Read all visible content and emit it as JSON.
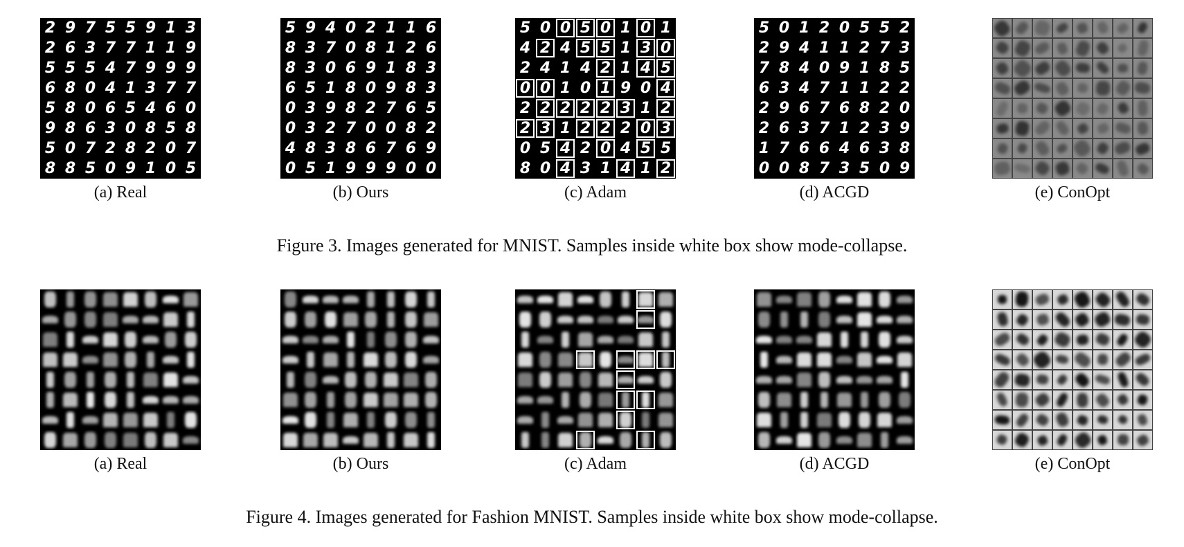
{
  "figure3": {
    "caption": "Figure 3. Images generated for MNIST. Samples inside white box show mode-collapse.",
    "panels": [
      {
        "label": "(a) Real",
        "rows": [
          "29755913",
          "26377119",
          "55547999",
          "68041377",
          "58065460",
          "98630858",
          "50728207",
          "88509105"
        ],
        "boxed": []
      },
      {
        "label": "(b) Ours",
        "rows": [
          "59402116",
          "83708126",
          "83069183",
          "65180983",
          "03982765",
          "03270082",
          "48386769",
          "05199900"
        ],
        "boxed": []
      },
      {
        "label": "(c) Adam",
        "rows": [
          "50050101",
          "42455130",
          "24142145",
          "00101904",
          "22222312",
          "23122203",
          "05420455",
          "80431412"
        ],
        "boxed": [
          [
            0,
            2
          ],
          [
            0,
            3
          ],
          [
            0,
            4
          ],
          [
            0,
            6
          ],
          [
            1,
            1
          ],
          [
            1,
            3
          ],
          [
            1,
            4
          ],
          [
            1,
            6
          ],
          [
            1,
            7
          ],
          [
            2,
            4
          ],
          [
            2,
            6
          ],
          [
            2,
            7
          ],
          [
            3,
            0
          ],
          [
            3,
            1
          ],
          [
            3,
            4
          ],
          [
            3,
            7
          ],
          [
            4,
            1
          ],
          [
            4,
            2
          ],
          [
            4,
            3
          ],
          [
            4,
            4
          ],
          [
            4,
            5
          ],
          [
            4,
            7
          ],
          [
            5,
            0
          ],
          [
            5,
            1
          ],
          [
            5,
            3
          ],
          [
            5,
            4
          ],
          [
            5,
            6
          ],
          [
            5,
            7
          ],
          [
            6,
            2
          ],
          [
            6,
            4
          ],
          [
            6,
            6
          ],
          [
            7,
            2
          ],
          [
            7,
            5
          ],
          [
            7,
            7
          ]
        ]
      },
      {
        "label": "(d) ACGD",
        "rows": [
          "50120552",
          "29411273",
          "78409185",
          "63471122",
          "29676820",
          "26371239",
          "17664638",
          "00873509"
        ],
        "boxed": []
      },
      {
        "label": "(e) ConOpt",
        "rows": [],
        "boxed": []
      }
    ]
  },
  "figure4": {
    "caption": "Figure 4. Images generated for Fashion MNIST. Samples inside white box show mode-collapse.",
    "panels": [
      {
        "label": "(a) Real"
      },
      {
        "label": "(b) Ours"
      },
      {
        "label": "(c) Adam"
      },
      {
        "label": "(d) ACGD"
      },
      {
        "label": "(e) ConOpt"
      }
    ],
    "adam_boxed": [
      [
        0,
        6
      ],
      [
        1,
        6
      ],
      [
        3,
        3
      ],
      [
        3,
        5
      ],
      [
        3,
        6
      ],
      [
        3,
        7
      ],
      [
        4,
        5
      ],
      [
        5,
        5
      ],
      [
        5,
        6
      ],
      [
        6,
        5
      ],
      [
        7,
        3
      ],
      [
        7,
        6
      ]
    ]
  }
}
